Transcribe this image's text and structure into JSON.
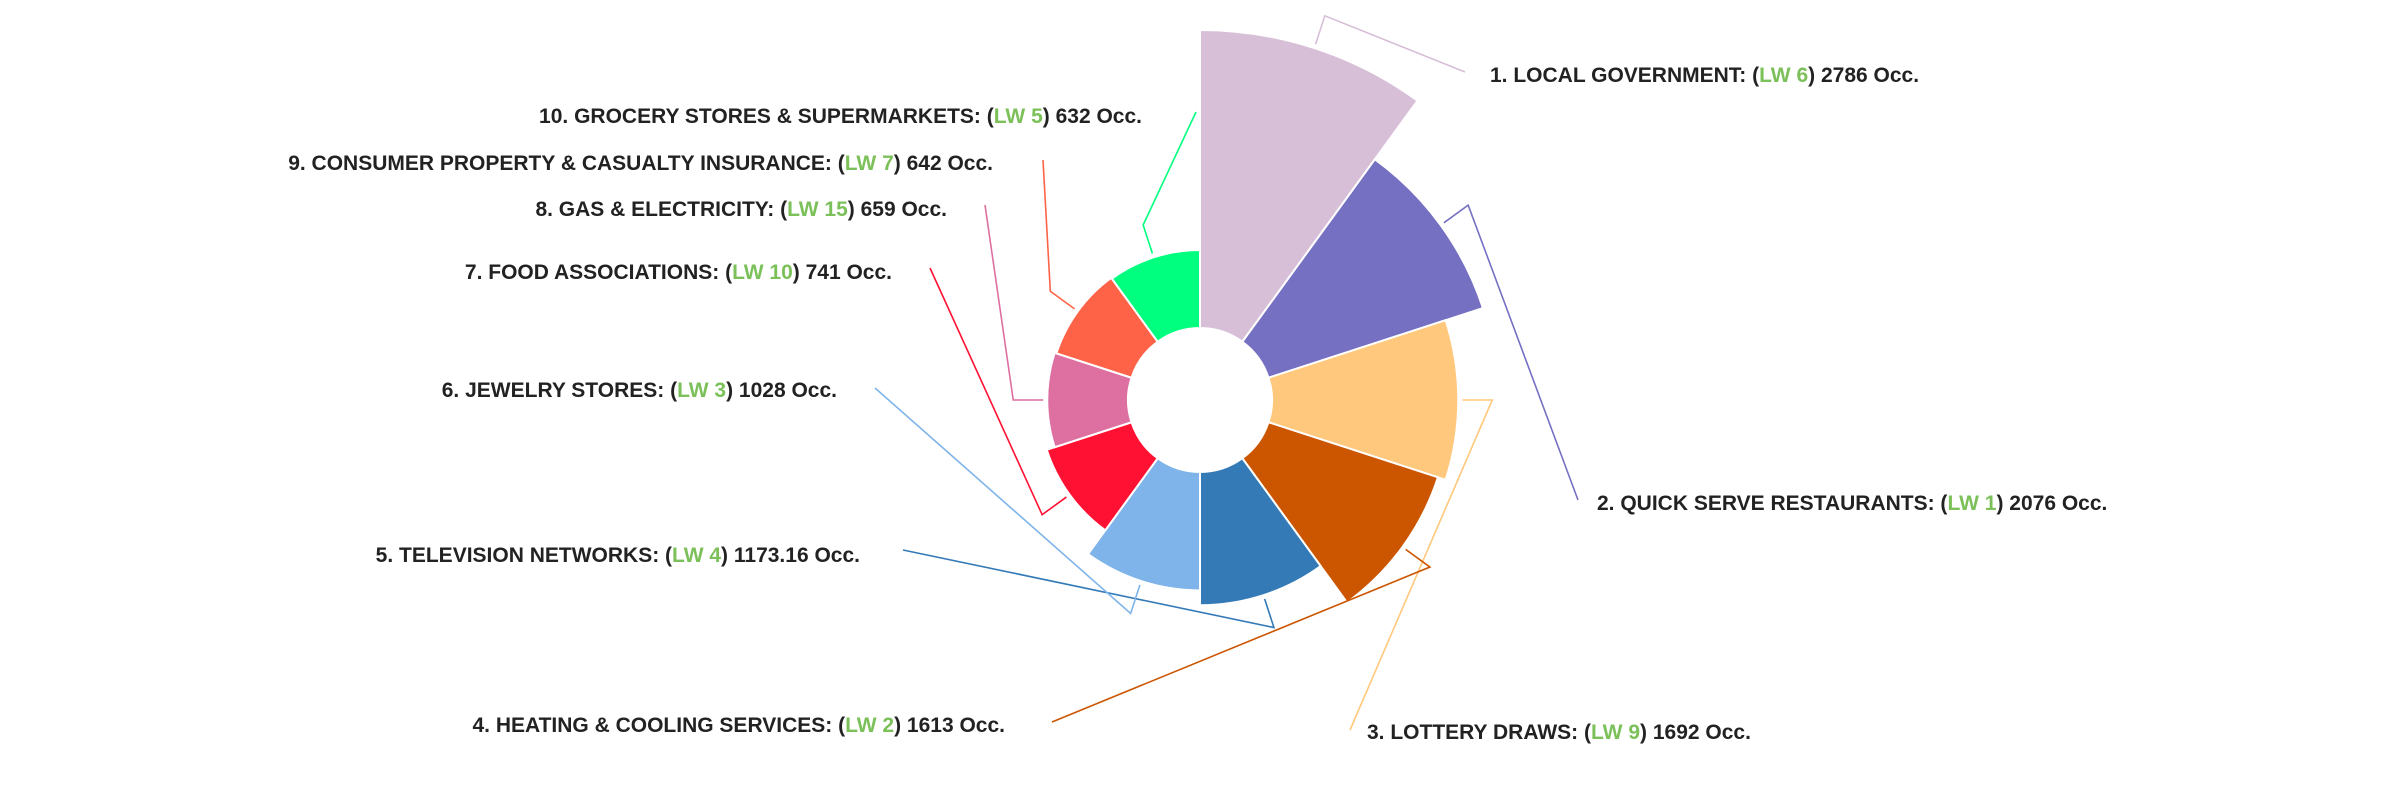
{
  "chart_data": {
    "type": "pie",
    "variant": "variable-radius donut",
    "title": "",
    "legend": "none",
    "label_style": "outside with leader lines",
    "occ_suffix": "Occ.",
    "slices": [
      {
        "rank": "1.",
        "name": "LOCAL GOVERNMENT",
        "lw": "LW 6",
        "value": 2786,
        "value_text": "2786",
        "color": "#d8bfd8"
      },
      {
        "rank": "2.",
        "name": "QUICK SERVE RESTAURANTS",
        "lw": "LW 1",
        "value": 2076,
        "value_text": "2076",
        "color": "#7570c2"
      },
      {
        "rank": "3.",
        "name": "LOTTERY DRAWS",
        "lw": "LW 9",
        "value": 1692,
        "value_text": "1692",
        "color": "#ffc87c"
      },
      {
        "rank": "4.",
        "name": "HEATING & COOLING SERVICES",
        "lw": "LW 2",
        "value": 1613,
        "value_text": "1613",
        "color": "#cc5500"
      },
      {
        "rank": "5.",
        "name": "TELEVISION NETWORKS",
        "lw": "LW 4",
        "value": 1173.16,
        "value_text": "1173.16",
        "color": "#337ab7"
      },
      {
        "rank": "6.",
        "name": "JEWELRY STORES",
        "lw": "LW 3",
        "value": 1028,
        "value_text": "1028",
        "color": "#7eb4ea"
      },
      {
        "rank": "7.",
        "name": "FOOD ASSOCIATIONS",
        "lw": "LW 10",
        "value": 741,
        "value_text": "741",
        "color": "#ff1133"
      },
      {
        "rank": "8.",
        "name": "GAS & ELECTRICITY",
        "lw": "LW 15",
        "value": 659,
        "value_text": "659",
        "color": "#de6fa1"
      },
      {
        "rank": "9.",
        "name": "CONSUMER PROPERTY & CASUALTY INSURANCE",
        "lw": "LW 7",
        "value": 642,
        "value_text": "642",
        "color": "#ff6347"
      },
      {
        "rank": "10.",
        "name": "GROCERY STORES & SUPERMARKETS",
        "lw": "LW 5",
        "value": 632,
        "value_text": "632",
        "color": "#00ff7f"
      }
    ]
  }
}
